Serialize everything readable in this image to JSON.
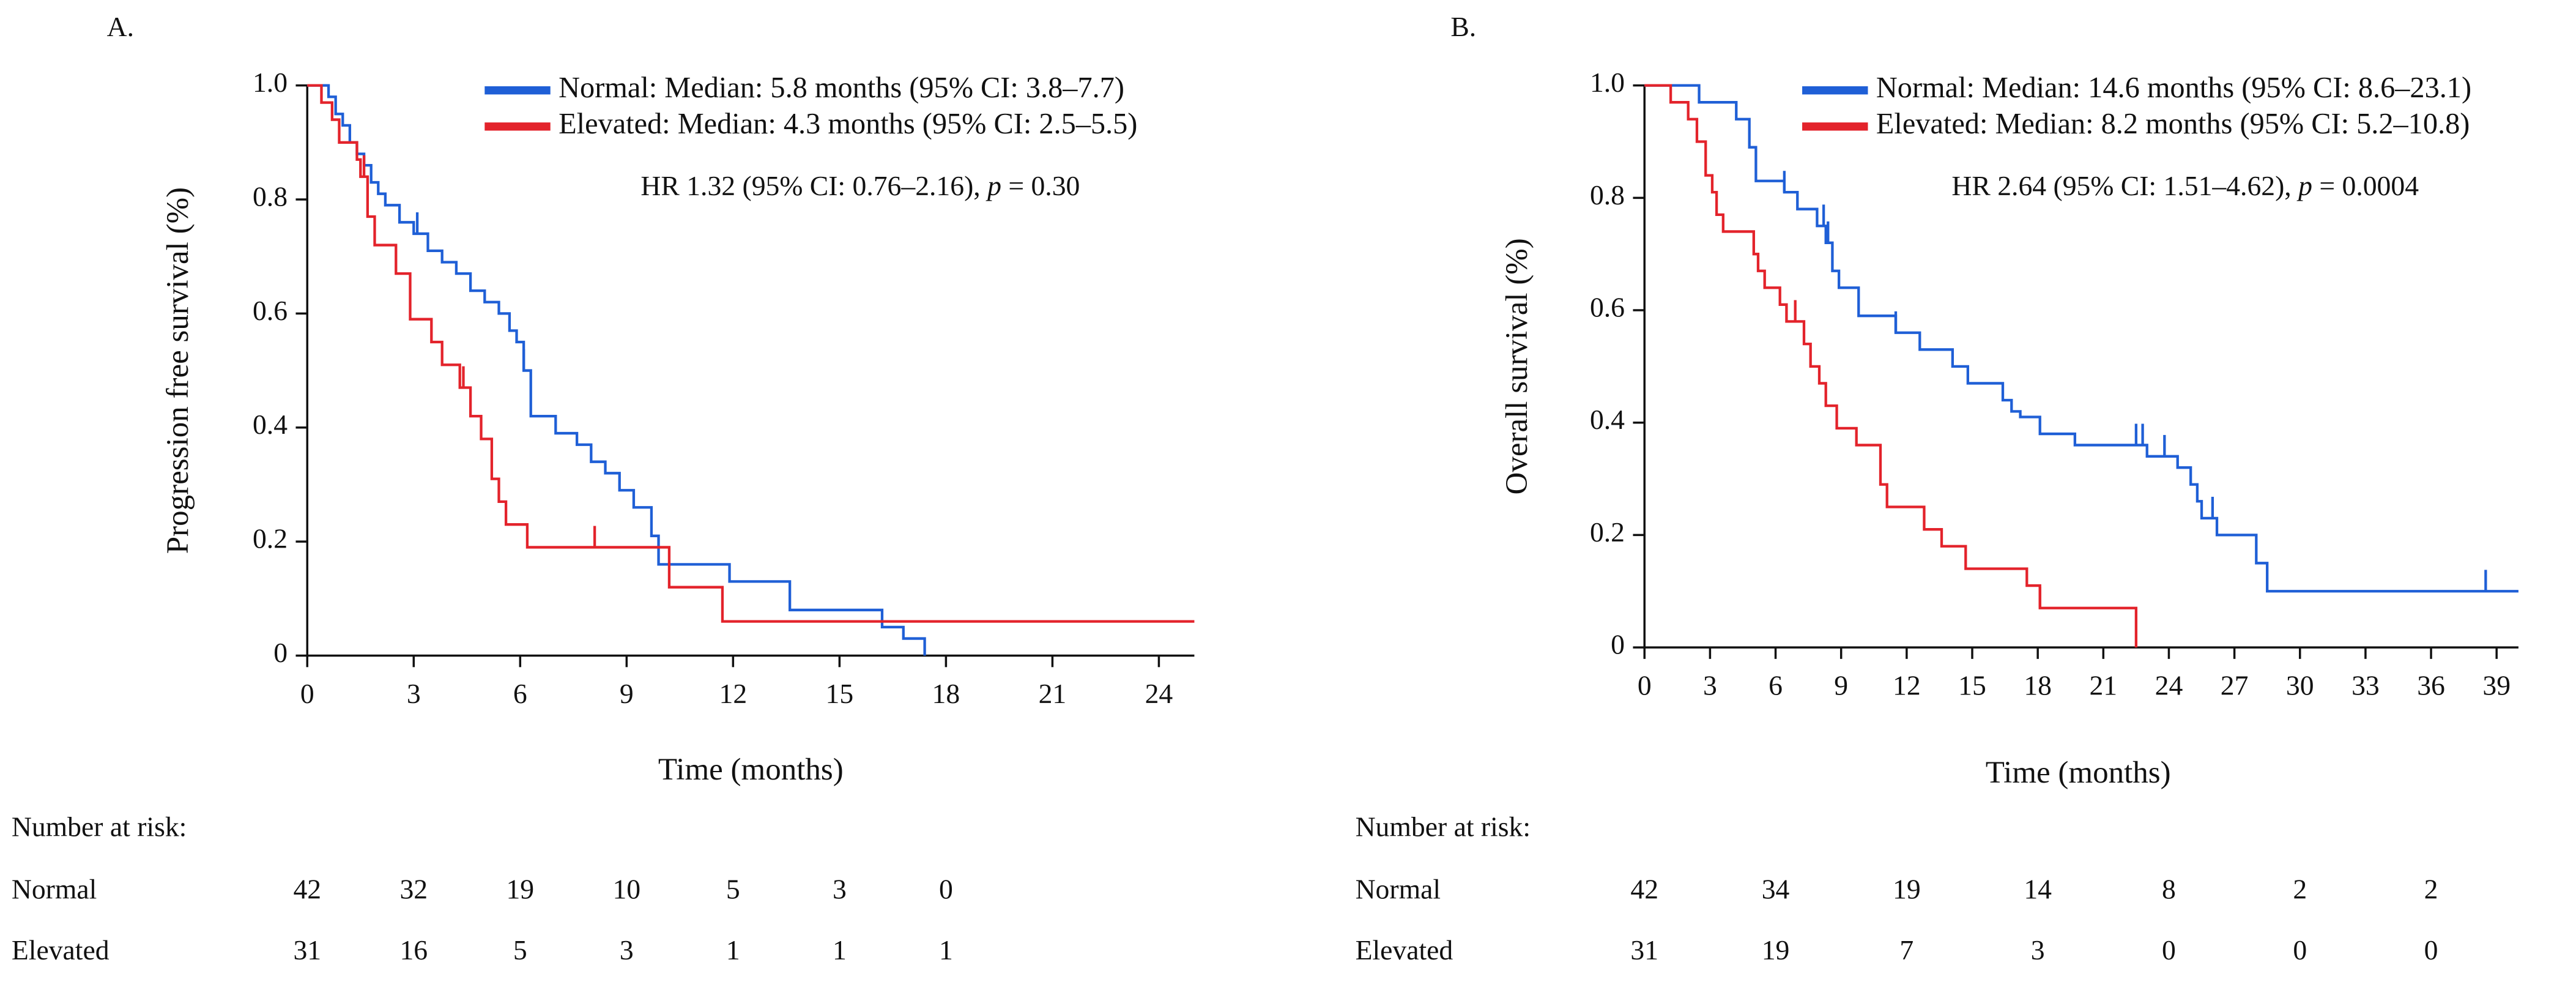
{
  "chart_data": [
    {
      "type": "km",
      "panel": "A.",
      "xlabel": "Time (months)",
      "ylabel": "Progression free survival (%)",
      "xlim": [
        0,
        25
      ],
      "xticks": [
        0,
        3,
        6,
        9,
        12,
        15,
        18,
        21,
        24
      ],
      "ylim": [
        0,
        1
      ],
      "yticks": [
        0,
        0.2,
        0.4,
        0.6,
        0.8,
        {
          "value": 1,
          "label": "1.0"
        }
      ],
      "annotation": {
        "text": "HR 1.32 (95% CI: 0.76–2.16), ",
        "p": "p",
        "p_text": " = 0.30"
      },
      "series": [
        {
          "name": "Normal: Median: 5.8 months (95% CI: 3.8–7.7)",
          "color": "#1f5fd6",
          "x": [
            0,
            0.6,
            0.8,
            1.0,
            1.2,
            1.4,
            1.6,
            1.8,
            2.0,
            2.2,
            2.6,
            3.0,
            3.4,
            3.8,
            4.2,
            4.6,
            5.0,
            5.4,
            5.7,
            5.9,
            6.1,
            6.3,
            7.0,
            7.6,
            8.0,
            8.4,
            8.8,
            9.2,
            9.7,
            9.9,
            11.9,
            13.6,
            16.2,
            16.8,
            17.4
          ],
          "values": [
            1,
            0.98,
            0.95,
            0.93,
            0.9,
            0.88,
            0.86,
            0.83,
            0.81,
            0.79,
            0.76,
            0.74,
            0.71,
            0.69,
            0.67,
            0.64,
            0.62,
            0.6,
            0.57,
            0.55,
            0.5,
            0.42,
            0.39,
            0.37,
            0.34,
            0.32,
            0.29,
            0.26,
            0.21,
            0.16,
            0.13,
            0.08,
            0.05,
            0.03,
            0
          ],
          "censored": [
            3.1,
            6.1
          ]
        },
        {
          "name": "Elevated: Median: 4.3 months (95% CI: 2.5–5.5)",
          "color": "#e3232b",
          "x": [
            0,
            0.4,
            0.7,
            0.9,
            1.4,
            1.5,
            1.7,
            1.9,
            2.5,
            2.9,
            3.5,
            3.8,
            4.3,
            4.6,
            4.9,
            5.2,
            5.4,
            5.6,
            6.2,
            10.2,
            11.7,
            25
          ],
          "values": [
            1,
            0.97,
            0.94,
            0.9,
            0.87,
            0.84,
            0.77,
            0.72,
            0.67,
            0.59,
            0.55,
            0.51,
            0.47,
            0.42,
            0.38,
            0.31,
            0.27,
            0.23,
            0.19,
            0.12,
            0.06,
            0.06
          ],
          "censored": [
            1.6,
            4.4,
            8.1
          ]
        }
      ],
      "risk_table": {
        "title": "Number at risk:",
        "rows": [
          {
            "name": "Normal",
            "counts": [
              42,
              32,
              19,
              10,
              5,
              3,
              0
            ]
          },
          {
            "name": "Elevated",
            "counts": [
              31,
              16,
              5,
              3,
              1,
              1,
              1
            ]
          }
        ]
      }
    },
    {
      "type": "km",
      "panel": "B.",
      "xlabel": "Time (months)",
      "ylabel": "Overall survival (%)",
      "xlim": [
        0,
        40
      ],
      "xticks": [
        0,
        3,
        6,
        9,
        12,
        15,
        18,
        21,
        24,
        27,
        30,
        33,
        36,
        39
      ],
      "ylim": [
        0,
        1
      ],
      "yticks": [
        0,
        0.2,
        0.4,
        0.6,
        0.8,
        {
          "value": 1,
          "label": "1.0"
        }
      ],
      "annotation": {
        "text": "HR 2.64 (95% CI: 1.51–4.62), ",
        "p": "p",
        "p_text": " = 0.0004"
      },
      "series": [
        {
          "name": "Normal: Median: 14.6 months (95% CI: 8.6–23.1)",
          "color": "#1f5fd6",
          "x": [
            0,
            2.5,
            4.2,
            4.8,
            5.1,
            6.4,
            7.0,
            7.9,
            8.3,
            8.6,
            8.9,
            9.8,
            11.5,
            12.6,
            14.1,
            14.8,
            16.4,
            16.8,
            17.2,
            18.1,
            19.7,
            23.0,
            24.4,
            25.0,
            25.3,
            25.5,
            26.2,
            28.0,
            28.5,
            40
          ],
          "values": [
            1,
            0.97,
            0.94,
            0.89,
            0.83,
            0.81,
            0.78,
            0.75,
            0.72,
            0.67,
            0.64,
            0.59,
            0.56,
            0.53,
            0.5,
            0.47,
            0.44,
            0.42,
            0.41,
            0.38,
            0.36,
            0.34,
            0.32,
            0.29,
            0.26,
            0.23,
            0.2,
            0.15,
            0.1,
            0.1
          ],
          "censored": [
            6.4,
            8.2,
            8.4,
            11.5,
            22.5,
            22.8,
            23.8,
            26.0,
            38.5
          ]
        },
        {
          "name": "Elevated: Median: 8.2 months (95% CI: 5.2–10.8)",
          "color": "#e3232b",
          "x": [
            0,
            1.2,
            2.0,
            2.4,
            2.8,
            3.1,
            3.3,
            3.6,
            5.0,
            5.2,
            5.5,
            6.2,
            6.5,
            7.3,
            7.6,
            8.0,
            8.3,
            8.8,
            9.7,
            10.8,
            11.1,
            12.8,
            13.6,
            14.7,
            17.5,
            18.1,
            22.5
          ],
          "values": [
            1,
            0.97,
            0.94,
            0.9,
            0.84,
            0.81,
            0.77,
            0.74,
            0.7,
            0.67,
            0.64,
            0.61,
            0.58,
            0.54,
            0.5,
            0.47,
            0.43,
            0.39,
            0.36,
            0.29,
            0.25,
            0.21,
            0.18,
            0.14,
            0.11,
            0.07,
            0
          ],
          "censored": [
            6.9,
            18.1
          ]
        }
      ],
      "risk_table": {
        "title": "Number at risk:",
        "rows": [
          {
            "name": "Normal",
            "counts": [
              42,
              34,
              19,
              14,
              8,
              2,
              2
            ]
          },
          {
            "name": "Elevated",
            "counts": [
              31,
              19,
              7,
              3,
              0,
              0,
              0
            ]
          }
        ]
      }
    }
  ]
}
